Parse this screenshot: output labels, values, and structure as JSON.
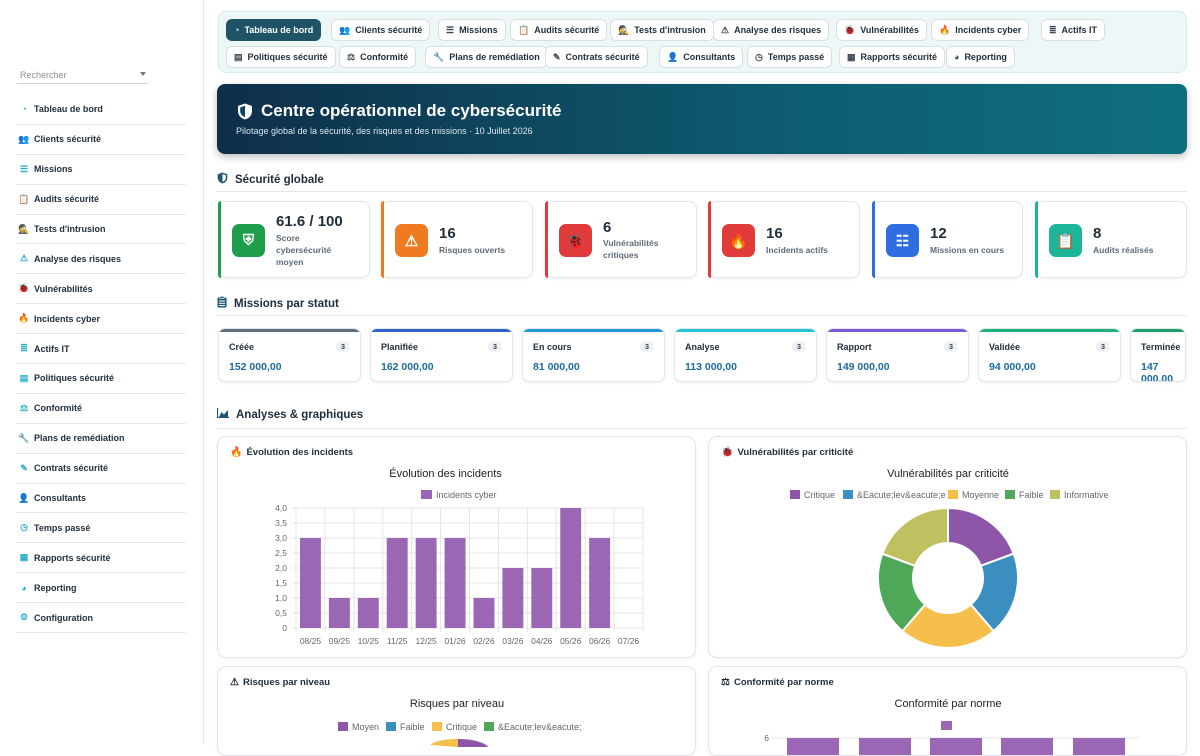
{
  "sidebar": {
    "search_placeholder": "Rechercher",
    "items": [
      {
        "label": "Tableau de bord",
        "icon": "gauge-icon"
      },
      {
        "label": "Clients sécurité",
        "icon": "users-cog-icon"
      },
      {
        "label": "Missions",
        "icon": "list-icon"
      },
      {
        "label": "Audits sécurité",
        "icon": "clipboard-check-icon"
      },
      {
        "label": "Tests d'intrusion",
        "icon": "user-secret-icon"
      },
      {
        "label": "Analyse des risques",
        "icon": "warning-icon"
      },
      {
        "label": "Vulnérabilités",
        "icon": "bug-icon"
      },
      {
        "label": "Incidents cyber",
        "icon": "fire-icon"
      },
      {
        "label": "Actifs IT",
        "icon": "server-icon"
      },
      {
        "label": "Politiques sécurité",
        "icon": "file-icon"
      },
      {
        "label": "Conformité",
        "icon": "scale-icon"
      },
      {
        "label": "Plans de remédiation",
        "icon": "wrench-icon"
      },
      {
        "label": "Contrats sécurité",
        "icon": "file-signature-icon"
      },
      {
        "label": "Consultants",
        "icon": "user-icon"
      },
      {
        "label": "Temps passé",
        "icon": "clock-icon"
      },
      {
        "label": "Rapports sécurité",
        "icon": "report-icon"
      },
      {
        "label": "Reporting",
        "icon": "pie-icon"
      },
      {
        "label": "Configuration",
        "icon": "gear-icon"
      }
    ]
  },
  "tabs": [
    {
      "label": "Tableau de bord",
      "icon": "gauge-icon",
      "active": true
    },
    {
      "label": "Clients sécurité",
      "icon": "users-cog-icon"
    },
    {
      "label": "Missions",
      "icon": "list-icon"
    },
    {
      "label": "Audits sécurité",
      "icon": "clipboard-check-icon"
    },
    {
      "label": "Tests d'intrusion",
      "icon": "user-secret-icon"
    },
    {
      "label": "Analyse des risques",
      "icon": "warning-icon"
    },
    {
      "label": "Vulnérabilités",
      "icon": "bug-icon"
    },
    {
      "label": "Incidents cyber",
      "icon": "fire-icon"
    },
    {
      "label": "Actifs IT",
      "icon": "server-icon"
    },
    {
      "label": "Politiques sécurité",
      "icon": "file-icon"
    },
    {
      "label": "Conformité",
      "icon": "scale-icon"
    },
    {
      "label": "Plans de remédiation",
      "icon": "wrench-icon"
    },
    {
      "label": "Contrats sécurité",
      "icon": "file-signature-icon"
    },
    {
      "label": "Consultants",
      "icon": "user-icon"
    },
    {
      "label": "Temps passé",
      "icon": "clock-icon"
    },
    {
      "label": "Rapports sécurité",
      "icon": "report-icon"
    },
    {
      "label": "Reporting",
      "icon": "pie-icon"
    }
  ],
  "hero": {
    "title": "Centre opérationnel de cybersécurité",
    "subtitle": "Pilotage global de la sécurité, des risques et des missions · 10 Juillet 2026"
  },
  "sections": {
    "security": "Sécurité globale",
    "missions": "Missions par statut",
    "analyses": "Analyses & graphiques"
  },
  "kpis": [
    {
      "value": "61.6 / 100",
      "label": "Score cybersécurité moyen",
      "color": "#1e9e4a",
      "icon": "shield-icon"
    },
    {
      "value": "16",
      "label": "Risques ouverts",
      "color": "#f07a1f",
      "icon": "warning-icon"
    },
    {
      "value": "6",
      "label": "Vulnérabilités critiques",
      "color": "#e03a3a",
      "icon": "bug-icon"
    },
    {
      "value": "16",
      "label": "Incidents actifs",
      "color": "#e03a3a",
      "icon": "fire-icon"
    },
    {
      "value": "12",
      "label": "Missions en cours",
      "color": "#2e6ee0",
      "icon": "tasks-icon"
    },
    {
      "value": "8",
      "label": "Audits réalisés",
      "color": "#1cb59a",
      "icon": "clipboard-check-icon"
    }
  ],
  "statuses": [
    {
      "name": "Créée",
      "count": "3",
      "amount": "152 000,00",
      "color": "#5d6f80"
    },
    {
      "name": "Planifiée",
      "count": "3",
      "amount": "162 000,00",
      "color": "#2e62c8"
    },
    {
      "name": "En cours",
      "count": "3",
      "amount": "81 000,00",
      "color": "#2196d8"
    },
    {
      "name": "Analyse",
      "count": "3",
      "amount": "113 000,00",
      "color": "#22c4d8"
    },
    {
      "name": "Rapport",
      "count": "3",
      "amount": "149 000,00",
      "color": "#7b5bd6"
    },
    {
      "name": "Validée",
      "count": "3",
      "amount": "94 000,00",
      "color": "#22b07a"
    },
    {
      "name": "Terminée",
      "count": "",
      "amount": "147 000,00",
      "color": "#1fa06a"
    }
  ],
  "cards": {
    "incidents": "Évolution des incidents",
    "vulns": "Vulnérabilités par criticité",
    "risks": "Risques par niveau",
    "compliance": "Conformité par norme"
  },
  "chart_data": [
    {
      "type": "bar",
      "title": "Évolution des incidents",
      "categories": [
        "08/25",
        "09/25",
        "10/25",
        "11/25",
        "12/25",
        "01/26",
        "02/26",
        "03/26",
        "04/26",
        "05/26",
        "06/26",
        "07/26"
      ],
      "series": [
        {
          "name": "Incidents cyber",
          "values": [
            3,
            1,
            1,
            3,
            3,
            3,
            1,
            2,
            2,
            4,
            3,
            0
          ],
          "color": "#9b67b4"
        }
      ],
      "ylim": [
        0,
        4
      ],
      "yticks": [
        "4,0",
        "3,5",
        "3,0",
        "2,5",
        "2,0",
        "1,5",
        "1,0",
        "0,5",
        "0"
      ],
      "grid": true,
      "legend": "top"
    },
    {
      "type": "pie",
      "title": "Vulnérabilités par criticité",
      "labels": [
        "Critique",
        "&Eacute;lev&eacute;e",
        "Moyenne",
        "Faible",
        "Informative"
      ],
      "values": [
        6,
        6,
        7,
        6,
        6
      ],
      "colors": [
        "#8e56a8",
        "#3a8fc0",
        "#f6be4a",
        "#4ea858",
        "#c0c060"
      ],
      "legend": "top"
    },
    {
      "type": "pie",
      "title": "Risques par niveau",
      "labels": [
        "Moyen",
        "Faible",
        "Critique",
        "&Eacute;lev&eacute;"
      ],
      "colors": [
        "#8e56a8",
        "#3a8fc0",
        "#f6be4a",
        "#4ea858"
      ],
      "legend": "top"
    },
    {
      "type": "bar",
      "title": "Conformité par norme",
      "yticks": [
        "6"
      ],
      "series": [
        {
          "color": "#9b67b4"
        }
      ],
      "legend": "top"
    }
  ]
}
